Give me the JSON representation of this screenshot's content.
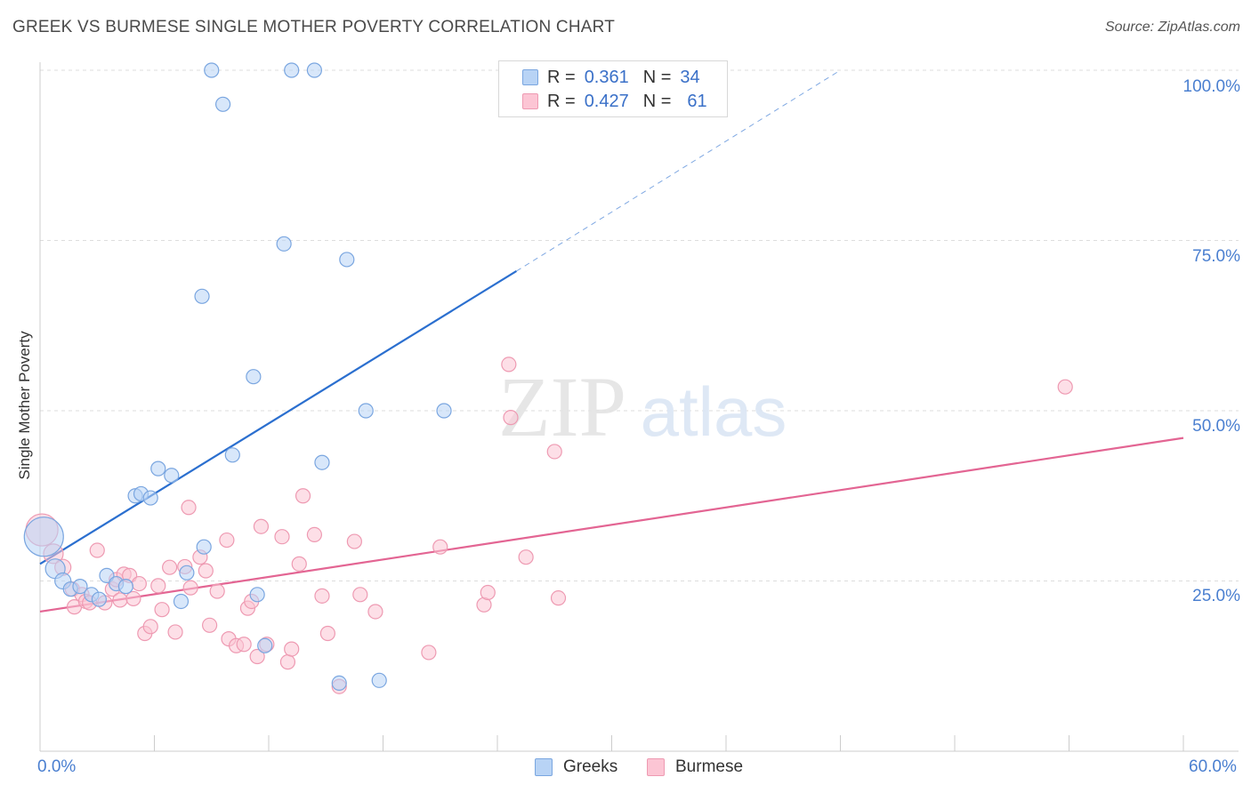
{
  "title": "GREEK VS BURMESE SINGLE MOTHER POVERTY CORRELATION CHART",
  "source": "Source: ZipAtlas.com",
  "watermark": {
    "zip": "ZIP",
    "atlas": "atlas"
  },
  "legend": {
    "greeks": {
      "r_label": "R =",
      "r_value": "0.361",
      "n_label": "N =",
      "n_value": "34"
    },
    "burmese": {
      "r_label": "R =",
      "r_value": "0.427",
      "n_label": "N =",
      "n_value": "61"
    }
  },
  "colors": {
    "greeks_fill": "#b8d3f5",
    "greeks_stroke": "#7aa6e0",
    "greeks_line": "#2b6fcf",
    "burmese_fill": "#fcc5d4",
    "burmese_stroke": "#ee9ab2",
    "burmese_line": "#e36593",
    "axis_text": "#4a7fd0"
  },
  "chart_data": {
    "type": "scatter",
    "title": "GREEK VS BURMESE SINGLE MOTHER POVERTY CORRELATION CHART",
    "xlabel": "",
    "ylabel": "Single Mother Poverty",
    "xlim": [
      0,
      60
    ],
    "ylim": [
      0,
      105
    ],
    "x_tick_labels": [
      "0.0%",
      "60.0%"
    ],
    "y_tick_labels": [
      "25.0%",
      "50.0%",
      "75.0%",
      "100.0%"
    ],
    "y_ticks": [
      25,
      50,
      75,
      100
    ],
    "grid": true,
    "legend_position": "top-center",
    "series": [
      {
        "name": "Greeks",
        "points": [
          {
            "x": 0.2,
            "y": 31.5,
            "s": 22
          },
          {
            "x": 0.8,
            "y": 26.8,
            "s": 11
          },
          {
            "x": 1.2,
            "y": 25,
            "s": 9
          },
          {
            "x": 1.6,
            "y": 23.8,
            "s": 8
          },
          {
            "x": 2.1,
            "y": 24.2,
            "s": 8
          },
          {
            "x": 2.7,
            "y": 23,
            "s": 8
          },
          {
            "x": 3.1,
            "y": 22.3,
            "s": 8
          },
          {
            "x": 3.5,
            "y": 25.8,
            "s": 8
          },
          {
            "x": 4,
            "y": 24.6,
            "s": 8
          },
          {
            "x": 4.5,
            "y": 24.2,
            "s": 8
          },
          {
            "x": 5,
            "y": 37.5,
            "s": 8
          },
          {
            "x": 5.3,
            "y": 37.8,
            "s": 8
          },
          {
            "x": 5.8,
            "y": 37.2,
            "s": 8
          },
          {
            "x": 6.2,
            "y": 41.5,
            "s": 8
          },
          {
            "x": 6.9,
            "y": 40.5,
            "s": 8
          },
          {
            "x": 7.4,
            "y": 22,
            "s": 8
          },
          {
            "x": 7.7,
            "y": 26.2,
            "s": 8
          },
          {
            "x": 8.5,
            "y": 66.8,
            "s": 8
          },
          {
            "x": 8.6,
            "y": 30,
            "s": 8
          },
          {
            "x": 9,
            "y": 100,
            "s": 8
          },
          {
            "x": 9.6,
            "y": 95,
            "s": 8
          },
          {
            "x": 10.1,
            "y": 43.5,
            "s": 8
          },
          {
            "x": 11.2,
            "y": 55,
            "s": 8
          },
          {
            "x": 11.4,
            "y": 23,
            "s": 8
          },
          {
            "x": 11.8,
            "y": 15.5,
            "s": 8
          },
          {
            "x": 12.8,
            "y": 74.5,
            "s": 8
          },
          {
            "x": 13.2,
            "y": 100,
            "s": 8
          },
          {
            "x": 14.4,
            "y": 100,
            "s": 8
          },
          {
            "x": 14.8,
            "y": 42.4,
            "s": 8
          },
          {
            "x": 15.7,
            "y": 10,
            "s": 8
          },
          {
            "x": 16.1,
            "y": 72.2,
            "s": 8
          },
          {
            "x": 17.1,
            "y": 50,
            "s": 8
          },
          {
            "x": 17.8,
            "y": 10.4,
            "s": 8
          },
          {
            "x": 21.2,
            "y": 50,
            "s": 8
          }
        ],
        "trend": {
          "x0": 0,
          "y0": 27.5,
          "x1": 25,
          "y1": 70.5,
          "dash_x1": 42,
          "dash_y1": 100
        }
      },
      {
        "name": "Burmese",
        "points": [
          {
            "x": 0.1,
            "y": 32.5,
            "s": 18
          },
          {
            "x": 0.7,
            "y": 29,
            "s": 11
          },
          {
            "x": 1.2,
            "y": 27,
            "s": 9
          },
          {
            "x": 1.7,
            "y": 23.8,
            "s": 8
          },
          {
            "x": 1.8,
            "y": 21.2,
            "s": 8
          },
          {
            "x": 2.2,
            "y": 23,
            "s": 8
          },
          {
            "x": 2.4,
            "y": 22,
            "s": 8
          },
          {
            "x": 2.6,
            "y": 21.8,
            "s": 8
          },
          {
            "x": 3,
            "y": 29.5,
            "s": 8
          },
          {
            "x": 3.4,
            "y": 21.8,
            "s": 8
          },
          {
            "x": 3.8,
            "y": 23.8,
            "s": 8
          },
          {
            "x": 4,
            "y": 25.2,
            "s": 8
          },
          {
            "x": 4.2,
            "y": 22.2,
            "s": 8
          },
          {
            "x": 4.4,
            "y": 26,
            "s": 8
          },
          {
            "x": 4.7,
            "y": 25.8,
            "s": 8
          },
          {
            "x": 4.9,
            "y": 22.4,
            "s": 8
          },
          {
            "x": 5.2,
            "y": 24.6,
            "s": 8
          },
          {
            "x": 5.5,
            "y": 17.3,
            "s": 8
          },
          {
            "x": 5.8,
            "y": 18.3,
            "s": 8
          },
          {
            "x": 6.2,
            "y": 24.3,
            "s": 8
          },
          {
            "x": 6.4,
            "y": 20.8,
            "s": 8
          },
          {
            "x": 6.8,
            "y": 27,
            "s": 8
          },
          {
            "x": 7.1,
            "y": 17.5,
            "s": 8
          },
          {
            "x": 7.6,
            "y": 27.1,
            "s": 8
          },
          {
            "x": 7.8,
            "y": 35.8,
            "s": 8
          },
          {
            "x": 7.9,
            "y": 24,
            "s": 8
          },
          {
            "x": 8.4,
            "y": 28.5,
            "s": 8
          },
          {
            "x": 8.7,
            "y": 26.5,
            "s": 8
          },
          {
            "x": 8.9,
            "y": 18.5,
            "s": 8
          },
          {
            "x": 9.3,
            "y": 23.5,
            "s": 8
          },
          {
            "x": 9.8,
            "y": 31,
            "s": 8
          },
          {
            "x": 9.9,
            "y": 16.5,
            "s": 8
          },
          {
            "x": 10.3,
            "y": 15.5,
            "s": 8
          },
          {
            "x": 10.7,
            "y": 15.7,
            "s": 8
          },
          {
            "x": 10.9,
            "y": 21,
            "s": 8
          },
          {
            "x": 11.1,
            "y": 22,
            "s": 8
          },
          {
            "x": 11.4,
            "y": 13.9,
            "s": 8
          },
          {
            "x": 11.6,
            "y": 33,
            "s": 8
          },
          {
            "x": 11.9,
            "y": 15.7,
            "s": 8
          },
          {
            "x": 12.7,
            "y": 31.5,
            "s": 8
          },
          {
            "x": 13,
            "y": 13.1,
            "s": 8
          },
          {
            "x": 13.2,
            "y": 15,
            "s": 8
          },
          {
            "x": 13.6,
            "y": 27.5,
            "s": 8
          },
          {
            "x": 13.8,
            "y": 37.5,
            "s": 8
          },
          {
            "x": 14.4,
            "y": 31.8,
            "s": 8
          },
          {
            "x": 14.8,
            "y": 22.8,
            "s": 8
          },
          {
            "x": 15.1,
            "y": 17.3,
            "s": 8
          },
          {
            "x": 15.7,
            "y": 9.5,
            "s": 8
          },
          {
            "x": 16.5,
            "y": 30.8,
            "s": 8
          },
          {
            "x": 16.8,
            "y": 23,
            "s": 8
          },
          {
            "x": 17.6,
            "y": 20.5,
            "s": 8
          },
          {
            "x": 20.4,
            "y": 14.5,
            "s": 8
          },
          {
            "x": 21,
            "y": 30,
            "s": 8
          },
          {
            "x": 23.3,
            "y": 21.5,
            "s": 8
          },
          {
            "x": 23.5,
            "y": 23.3,
            "s": 8
          },
          {
            "x": 24.6,
            "y": 56.8,
            "s": 8
          },
          {
            "x": 24.7,
            "y": 49,
            "s": 8
          },
          {
            "x": 25.5,
            "y": 28.5,
            "s": 8
          },
          {
            "x": 27,
            "y": 44,
            "s": 8
          },
          {
            "x": 27.2,
            "y": 22.5,
            "s": 8
          },
          {
            "x": 53.8,
            "y": 53.5,
            "s": 8
          }
        ],
        "trend": {
          "x0": 0,
          "y0": 20.5,
          "x1": 60,
          "y1": 46
        }
      }
    ]
  }
}
